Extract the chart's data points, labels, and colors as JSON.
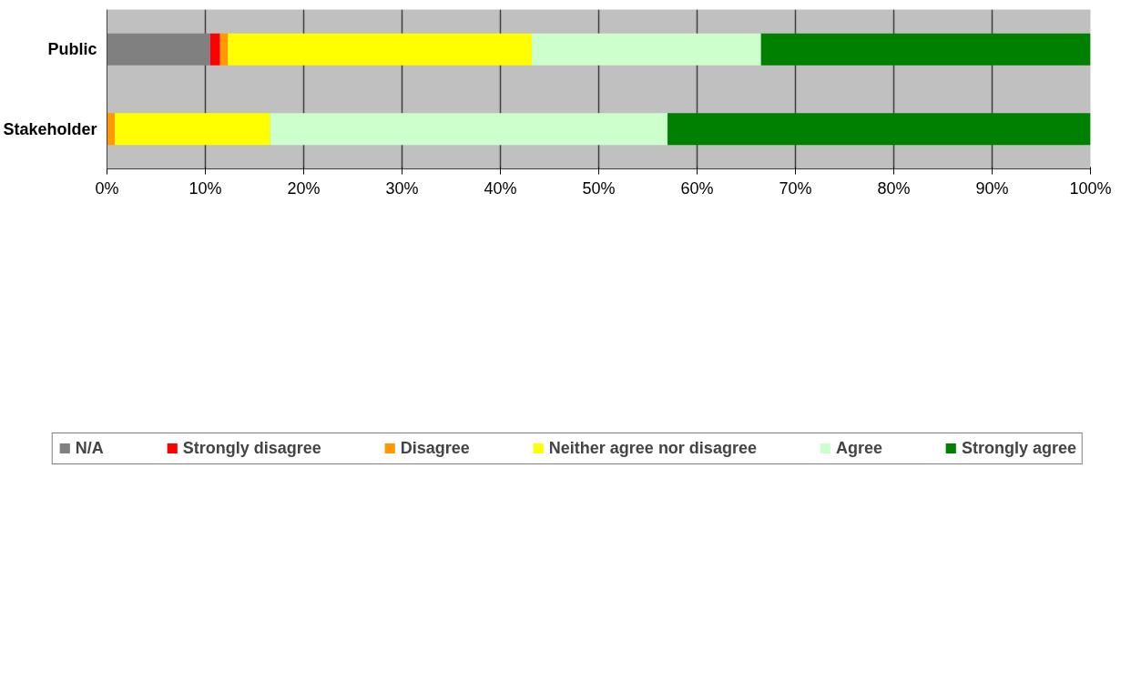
{
  "chart_data": {
    "type": "bar",
    "orientation": "horizontal",
    "stacked": true,
    "categories": [
      "Public",
      "Stakeholder"
    ],
    "series": [
      {
        "name": "N/A",
        "color": "#808080",
        "values": [
          10.5,
          0
        ]
      },
      {
        "name": "Strongly disagree",
        "color": "#ff0000",
        "values": [
          1.0,
          0
        ]
      },
      {
        "name": "Disagree",
        "color": "#ff9900",
        "values": [
          0.8,
          0.8
        ]
      },
      {
        "name": "Neither agree nor disagree",
        "color": "#ffff00",
        "values": [
          30.9,
          15.8
        ]
      },
      {
        "name": "Agree",
        "color": "#ccffcc",
        "values": [
          23.3,
          40.4
        ]
      },
      {
        "name": "Strongly agree",
        "color": "#008000",
        "values": [
          33.5,
          43.0
        ]
      }
    ],
    "xlim": [
      0,
      100
    ],
    "xticks": [
      {
        "value": 0,
        "label": "0%"
      },
      {
        "value": 10,
        "label": "10%"
      },
      {
        "value": 20,
        "label": "20%"
      },
      {
        "value": 30,
        "label": "30%"
      },
      {
        "value": 40,
        "label": "40%"
      },
      {
        "value": 50,
        "label": "50%"
      },
      {
        "value": 60,
        "label": "60%"
      },
      {
        "value": 70,
        "label": "70%"
      },
      {
        "value": 80,
        "label": "80%"
      },
      {
        "value": 90,
        "label": "90%"
      },
      {
        "value": 100,
        "label": "100%"
      }
    ],
    "grid": "x",
    "legend": "bottom"
  }
}
